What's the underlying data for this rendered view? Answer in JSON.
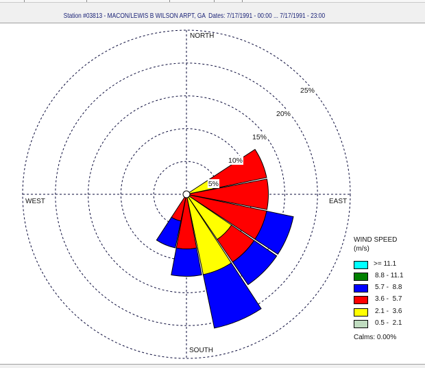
{
  "window": {
    "title": "Station #03813 - MACON/LEWIS B WILSON ARPT, GA  Dates: 7/17/1991 - 00:00 ... 7/17/1991 - 23:00"
  },
  "compass": {
    "north": "NORTH",
    "south": "SOUTH",
    "east": "EAST",
    "west": "WEST"
  },
  "legend": {
    "title": "WIND SPEED",
    "units": "(m/s)",
    "items": [
      {
        "label": ">= 11.1",
        "color": "#00ffff"
      },
      {
        "label": "8.8 - 11.1",
        "color": "#008000"
      },
      {
        "label": "5.7 -  8.8",
        "color": "#0000ff"
      },
      {
        "label": "3.6 -  5.7",
        "color": "#ff0000"
      },
      {
        "label": "2.1 -  3.6",
        "color": "#ffff00"
      },
      {
        "label": "0.5 -  2.1",
        "color": "#c0dcc0"
      }
    ],
    "calms": "Calms: 0.00%"
  },
  "chart_data": {
    "type": "bar",
    "subtype": "polar stacked (wind rose)",
    "title": "Station #03813 - MACON/LEWIS B WILSON ARPT, GA  Dates: 7/17/1991 - 00:00 ... 7/17/1991 - 23:00",
    "categories": [
      "N",
      "NNE",
      "NE",
      "ENE",
      "E",
      "ESE",
      "SE",
      "SSE",
      "S",
      "SSW",
      "SW",
      "WSW",
      "W",
      "WNW",
      "NW",
      "NNW"
    ],
    "series": [
      {
        "name": "0.5 - 2.1",
        "color": "#c0dcc0",
        "values": [
          0,
          0,
          0,
          0,
          0,
          0,
          0,
          0,
          0,
          0,
          0,
          0,
          0,
          0,
          0,
          0
        ]
      },
      {
        "name": "2.1 - 3.6",
        "color": "#ffff00",
        "values": [
          0,
          0,
          0,
          4.17,
          0,
          0,
          8.33,
          12.5,
          0,
          0,
          0,
          0,
          0,
          0,
          0,
          0
        ]
      },
      {
        "name": "3.6 - 5.7",
        "color": "#ff0000",
        "values": [
          0,
          0,
          0,
          8.33,
          12.5,
          12.5,
          4.17,
          0,
          8.33,
          4.17,
          0,
          0,
          0,
          0,
          0,
          0
        ]
      },
      {
        "name": "5.7 - 8.8",
        "color": "#0000ff",
        "values": [
          0,
          0,
          0,
          0,
          0,
          4.17,
          4.17,
          8.33,
          4.17,
          4.17,
          0,
          0,
          0,
          0,
          0,
          0
        ]
      },
      {
        "name": "8.8 - 11.1",
        "color": "#008000",
        "values": [
          0,
          0,
          0,
          0,
          0,
          0,
          0,
          0,
          0,
          0,
          0,
          0,
          0,
          0,
          0,
          0
        ]
      },
      {
        "name": ">= 11.1",
        "color": "#00ffff",
        "values": [
          0,
          0,
          0,
          0,
          0,
          0,
          0,
          0,
          0,
          0,
          0,
          0,
          0,
          0,
          0,
          0
        ]
      }
    ],
    "totals_percent": {
      "ENE": 12.5,
      "E": 12.5,
      "ESE": 16.67,
      "SE": 16.67,
      "SSE": 20.83,
      "S": 12.5,
      "SSW": 8.33
    },
    "rings": [
      5,
      10,
      15,
      20,
      25
    ],
    "ring_labels": [
      "5%",
      "10%",
      "15%",
      "20%",
      "25%"
    ],
    "rlim": [
      0,
      25
    ],
    "unit": "% frequency",
    "legend_title": "WIND SPEED (m/s)",
    "legend_position": "right-bottom",
    "calms_percent": 0.0,
    "grid": true
  }
}
